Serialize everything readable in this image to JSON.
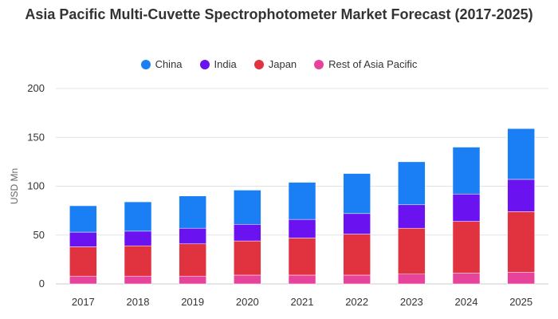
{
  "chart_data": {
    "type": "bar",
    "stacked": true,
    "title": "Asia Pacific Multi-Cuvette Spectrophotometer Market Forecast (2017-2025)",
    "ylabel": "USD Mn",
    "xlabel": "",
    "ylim": [
      0,
      200
    ],
    "yticks": [
      0,
      50,
      100,
      150,
      200
    ],
    "grid": true,
    "legend_position": "top",
    "categories": [
      "2017",
      "2018",
      "2019",
      "2020",
      "2021",
      "2022",
      "2023",
      "2024",
      "2025"
    ],
    "series": [
      {
        "name": "Rest of Asia Pacific",
        "color": "#e8439b",
        "values": [
          8,
          8,
          8,
          9,
          9,
          9,
          10,
          11,
          12
        ]
      },
      {
        "name": "Japan",
        "color": "#e0323f",
        "values": [
          30,
          31,
          33,
          35,
          38,
          42,
          47,
          53,
          62
        ]
      },
      {
        "name": "India",
        "color": "#6a12f0",
        "values": [
          15,
          15,
          16,
          17,
          19,
          21,
          24,
          28,
          33
        ]
      },
      {
        "name": "China",
        "color": "#1a7ff5",
        "values": [
          27,
          30,
          33,
          35,
          38,
          41,
          44,
          48,
          52
        ]
      }
    ],
    "legend_order": [
      "China",
      "India",
      "Japan",
      "Rest of Asia Pacific"
    ]
  }
}
